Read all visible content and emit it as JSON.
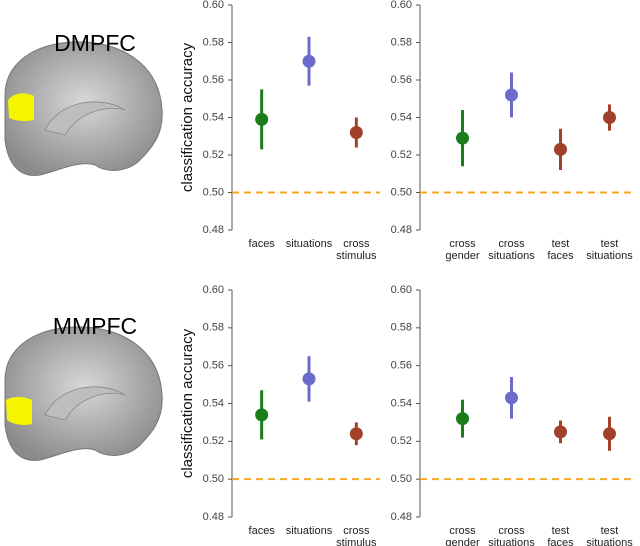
{
  "panels": [
    {
      "label": "DMPFC"
    },
    {
      "label": "MMPFC"
    }
  ],
  "chart_data": [
    {
      "type": "errorpoint",
      "ylabel": "classification accuracy",
      "categories": [
        "faces",
        "situations",
        "cross stimulus"
      ],
      "values": [
        0.539,
        0.57,
        0.532
      ],
      "errors": [
        0.016,
        0.013,
        0.008
      ],
      "colors": [
        "#1a7d1a",
        "#6b6bcc",
        "#a2412b"
      ],
      "ylim": [
        0.48,
        0.6
      ],
      "yticks": [
        0.48,
        {
          "value": 0.5,
          "label": "0.50"
        },
        0.52,
        0.54,
        0.56,
        0.58,
        {
          "value": 0.6,
          "label": "0.60"
        }
      ],
      "reference_line": 0.5,
      "reference_color": "#f5a623"
    },
    {
      "type": "errorpoint",
      "categories": [
        "cross gender",
        "cross situations",
        "test faces",
        "test situations"
      ],
      "values": [
        0.529,
        0.552,
        0.523,
        0.54
      ],
      "errors": [
        0.015,
        0.012,
        0.011,
        0.007
      ],
      "colors": [
        "#1a7d1a",
        "#6b6bcc",
        "#a2412b",
        "#a2412b"
      ],
      "ylim": [
        0.48,
        0.6
      ],
      "yticks": [
        0.48,
        {
          "value": 0.5,
          "label": "0.50"
        },
        0.52,
        0.54,
        0.56,
        0.58,
        {
          "value": 0.6,
          "label": "0.60"
        }
      ],
      "reference_line": 0.5,
      "reference_color": "#f5a623"
    },
    {
      "type": "errorpoint",
      "ylabel": "classification accuracy",
      "categories": [
        "faces",
        "situations",
        "cross stimulus"
      ],
      "values": [
        0.534,
        0.553,
        0.524
      ],
      "errors": [
        0.013,
        0.012,
        0.006
      ],
      "colors": [
        "#1a7d1a",
        "#6b6bcc",
        "#a2412b"
      ],
      "ylim": [
        0.48,
        0.6
      ],
      "yticks": [
        0.48,
        {
          "value": 0.5,
          "label": "0.50"
        },
        0.52,
        0.54,
        0.56,
        0.58,
        {
          "value": 0.6,
          "label": "0.60"
        }
      ],
      "reference_line": 0.5,
      "reference_color": "#f5a623"
    },
    {
      "type": "errorpoint",
      "categories": [
        "cross gender",
        "cross situations",
        "test faces",
        "test situations"
      ],
      "values": [
        0.532,
        0.543,
        0.525,
        0.524
      ],
      "errors": [
        0.01,
        0.011,
        0.006,
        0.009
      ],
      "colors": [
        "#1a7d1a",
        "#6b6bcc",
        "#a2412b",
        "#a2412b"
      ],
      "ylim": [
        0.48,
        0.6
      ],
      "yticks": [
        0.48,
        {
          "value": 0.5,
          "label": "0.50"
        },
        0.52,
        0.54,
        0.56,
        0.58,
        {
          "value": 0.6,
          "label": "0.60"
        }
      ],
      "reference_line": 0.5,
      "reference_color": "#f5a623"
    }
  ]
}
